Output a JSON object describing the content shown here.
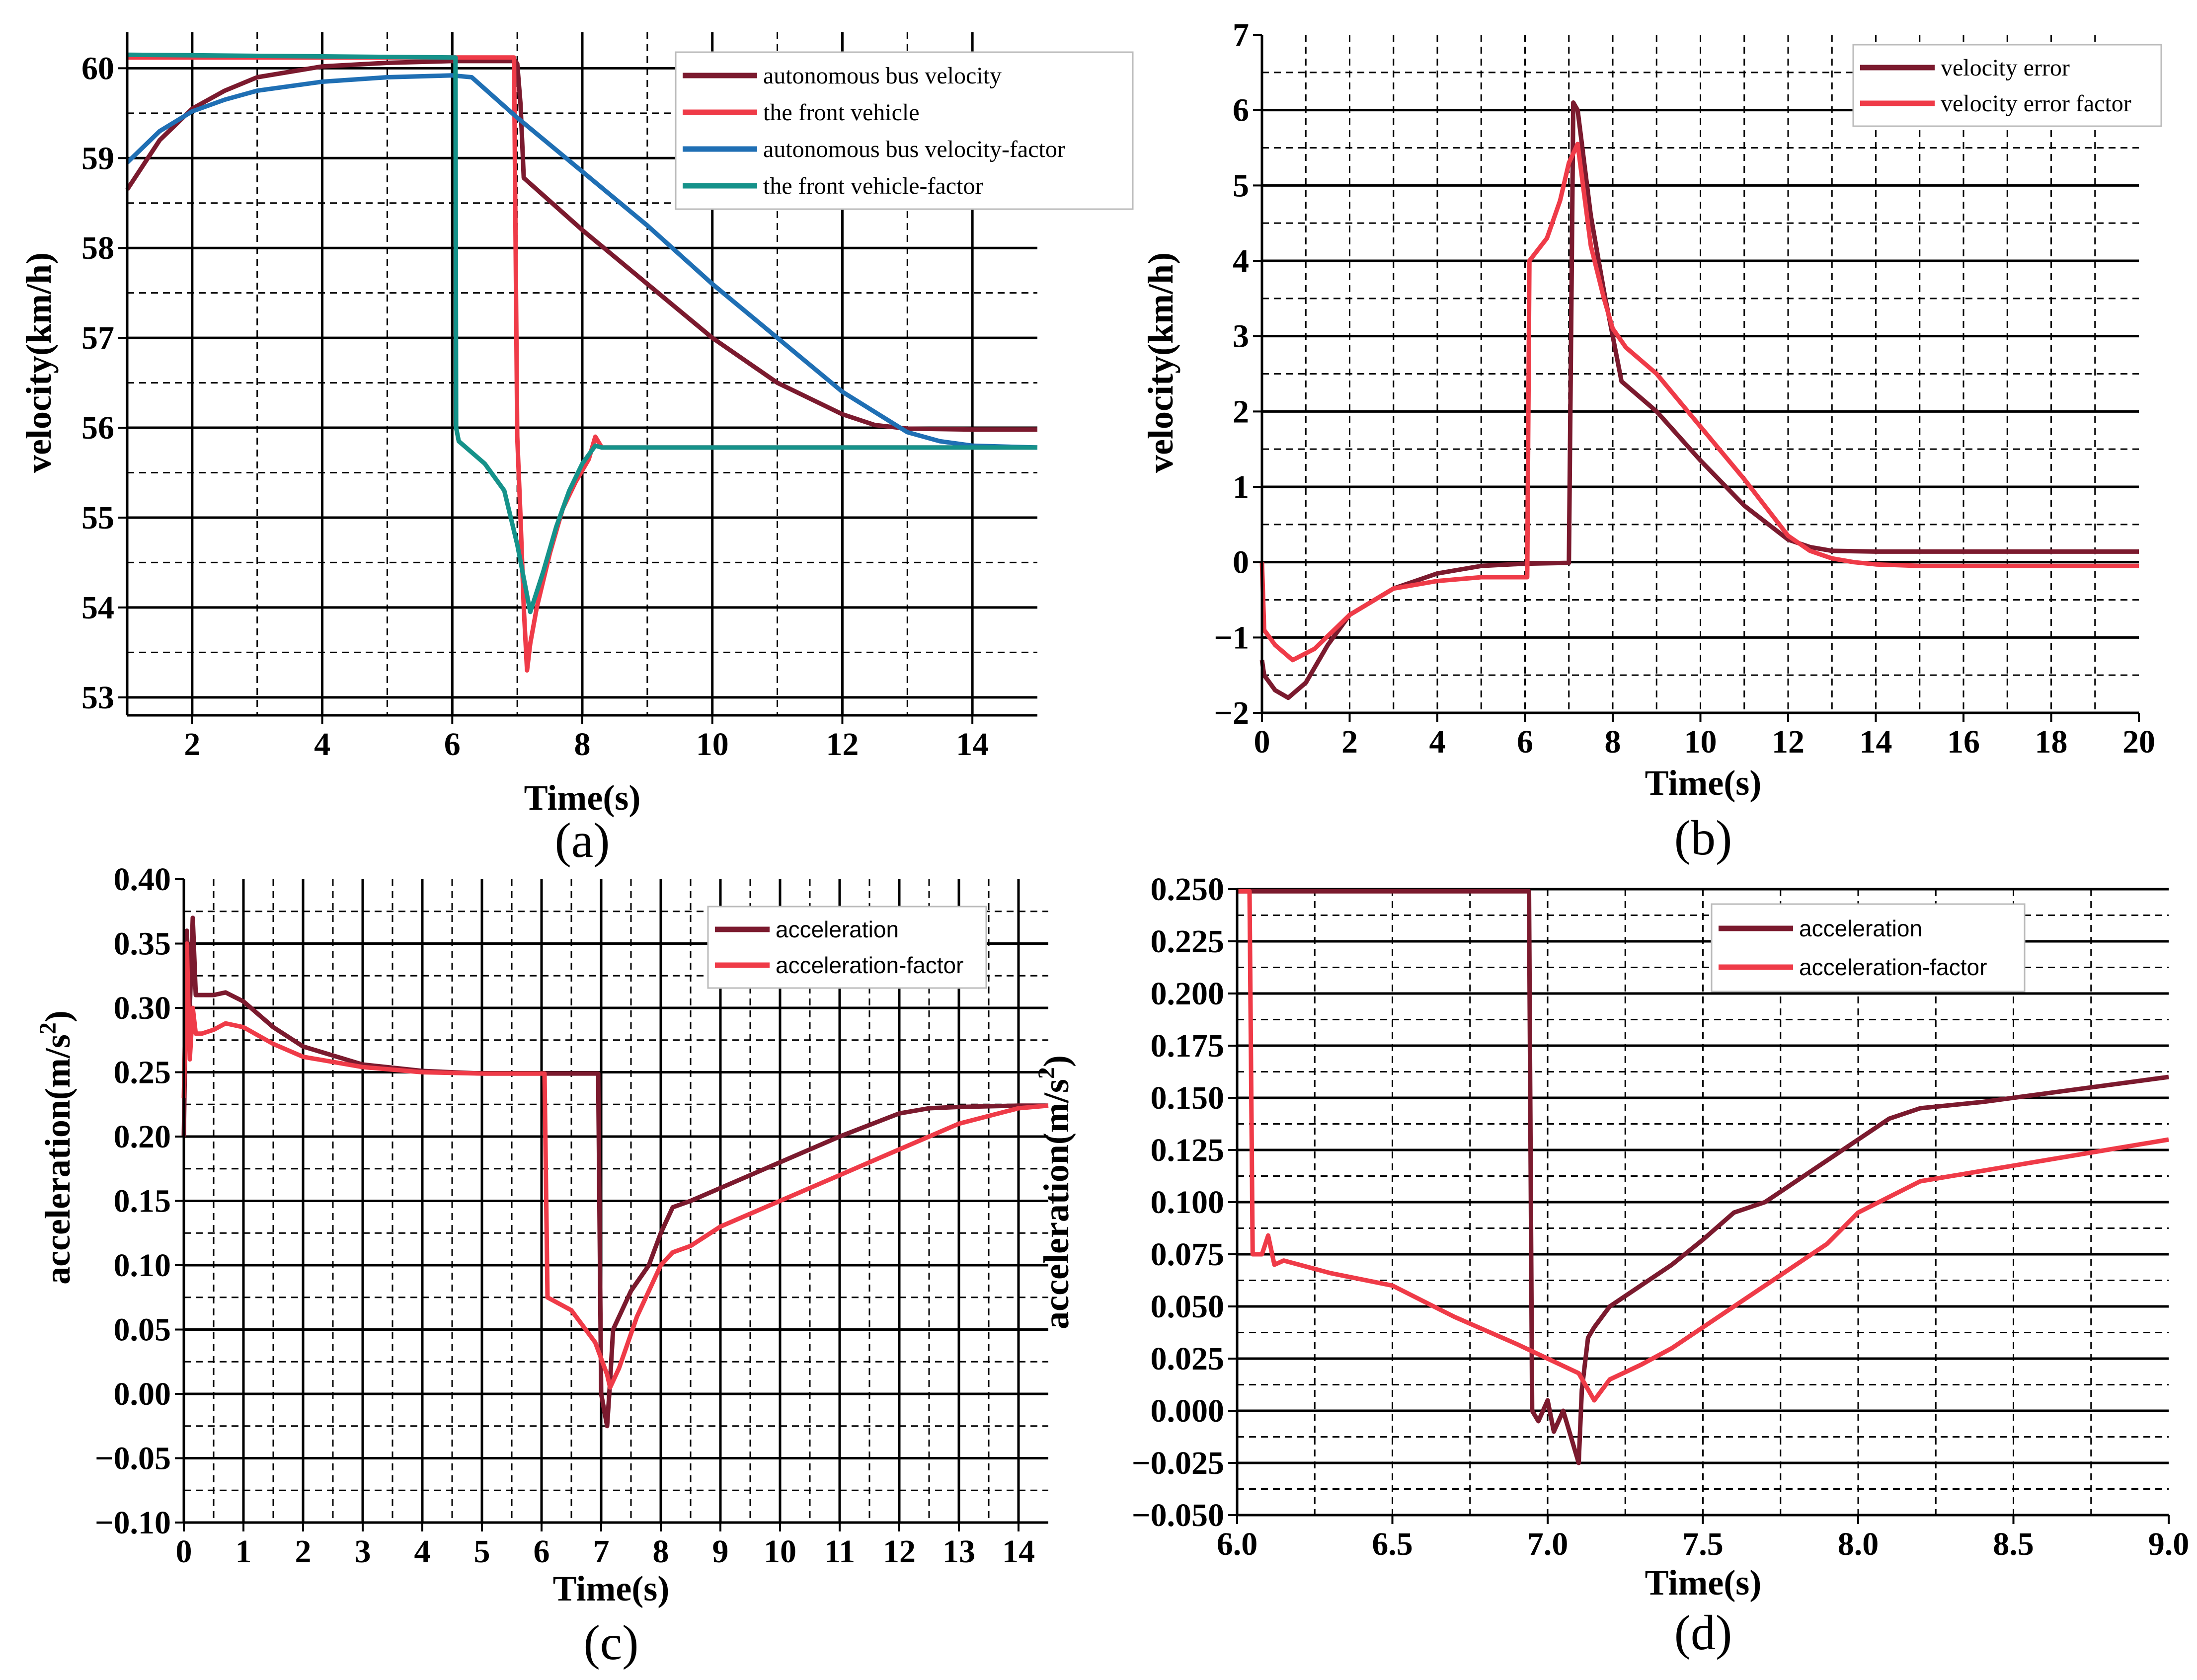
{
  "colors": {
    "dark_red": "#7b1a2e",
    "red": "#ef3b48",
    "blue": "#1f6fb4",
    "teal": "#15928a"
  },
  "chart_data": [
    {
      "id": "a",
      "type": "line",
      "caption": "(a)",
      "xlabel": "Time(s)",
      "ylabel": "velocity(km/h)",
      "xlim": [
        1,
        15
      ],
      "ylim": [
        52.8,
        60.4
      ],
      "xticks": [
        2,
        4,
        6,
        8,
        10,
        12,
        14
      ],
      "yticks": [
        53,
        54,
        55,
        56,
        57,
        58,
        59,
        60
      ],
      "grid_major_y": [
        53,
        54,
        55,
        56,
        57,
        58,
        59,
        60
      ],
      "grid_minor_y": [
        53.5,
        54.5,
        55.5,
        56.5,
        57.5,
        58.5,
        59.5
      ],
      "grid_major_x": [
        2,
        4,
        6,
        8,
        10,
        12,
        14
      ],
      "grid_minor_x": [
        3,
        5,
        7,
        9,
        11,
        13
      ],
      "legend_position": "top-right",
      "legend_font": "serif",
      "series": [
        {
          "name": "autonomous bus velocity",
          "color": "#7b1a2e",
          "x": [
            1,
            1.5,
            2,
            2.5,
            3,
            4,
            5,
            6,
            6.8,
            6.97,
            7.0,
            7.05,
            7.1,
            8,
            9,
            10,
            11,
            12,
            12.5,
            13,
            14,
            15
          ],
          "y": [
            58.65,
            59.2,
            59.55,
            59.75,
            59.9,
            60.02,
            60.06,
            60.08,
            60.08,
            60.08,
            60.05,
            59.6,
            58.78,
            58.2,
            57.6,
            57.0,
            56.5,
            56.15,
            56.03,
            55.99,
            55.98,
            55.98
          ]
        },
        {
          "name": "the front vehicle",
          "color": "#ef3b48",
          "x": [
            1,
            6,
            6.9,
            6.95,
            7.0,
            7.05,
            7.1,
            7.15,
            7.2,
            7.3,
            7.5,
            7.7,
            7.9,
            8.1,
            8.2,
            8.3,
            9,
            10,
            12,
            15
          ],
          "y": [
            60.12,
            60.12,
            60.12,
            60.12,
            55.9,
            55.0,
            54.0,
            53.3,
            53.6,
            54.0,
            54.6,
            55.1,
            55.4,
            55.65,
            55.9,
            55.78,
            55.78,
            55.78,
            55.78,
            55.78
          ]
        },
        {
          "name": "autonomous bus velocity-factor",
          "color": "#1f6fb4",
          "x": [
            1,
            1.5,
            2,
            2.5,
            3,
            4,
            5,
            6,
            6.3,
            7,
            8,
            9,
            10,
            11,
            12,
            13,
            13.5,
            14,
            15
          ],
          "y": [
            58.95,
            59.3,
            59.52,
            59.65,
            59.75,
            59.85,
            59.9,
            59.92,
            59.9,
            59.45,
            58.85,
            58.25,
            57.6,
            57.0,
            56.4,
            55.95,
            55.85,
            55.8,
            55.78
          ]
        },
        {
          "name": "the front vehicle-factor",
          "color": "#15928a",
          "x": [
            1,
            6,
            6.05,
            6.06,
            6.1,
            6.5,
            6.8,
            7.0,
            7.2,
            7.4,
            7.6,
            7.8,
            8.0,
            8.2,
            8.3,
            9,
            10,
            12,
            15
          ],
          "y": [
            60.15,
            60.12,
            60.12,
            56.0,
            55.85,
            55.6,
            55.3,
            54.7,
            53.95,
            54.4,
            54.9,
            55.3,
            55.6,
            55.8,
            55.78,
            55.78,
            55.78,
            55.78,
            55.78
          ]
        }
      ]
    },
    {
      "id": "b",
      "type": "line",
      "caption": "(b)",
      "xlabel": "Time(s)",
      "ylabel": "velocity(km/h)",
      "xlim": [
        0,
        20
      ],
      "ylim": [
        -2,
        7
      ],
      "xticks": [
        0,
        2,
        4,
        6,
        8,
        10,
        12,
        14,
        16,
        18,
        20
      ],
      "yticks": [
        -2,
        -1,
        0,
        1,
        2,
        3,
        4,
        5,
        6,
        7
      ],
      "grid_major_y": [
        -1,
        0,
        1,
        2,
        3,
        4,
        5,
        6
      ],
      "grid_minor_y": [
        -1.5,
        -0.5,
        0.5,
        1.5,
        2.5,
        3.5,
        4.5,
        5.5,
        6.5
      ],
      "grid_major_x": [],
      "grid_minor_x": [
        1,
        2,
        3,
        4,
        5,
        6,
        7,
        8,
        9,
        10,
        11,
        12,
        13,
        14,
        15,
        16,
        17,
        18,
        19
      ],
      "legend_position": "top-right",
      "legend_font": "serif",
      "series": [
        {
          "name": "velocity error",
          "color": "#7b1a2e",
          "x": [
            0,
            0.05,
            0.3,
            0.6,
            1.0,
            1.5,
            2,
            3,
            4,
            5,
            6,
            6.9,
            7.0,
            7.05,
            7.1,
            7.2,
            7.5,
            7.8,
            8.0,
            8.2,
            8.5,
            9,
            10,
            11,
            12,
            12.5,
            13,
            14,
            15,
            16,
            20
          ],
          "y": [
            -1.3,
            -1.5,
            -1.7,
            -1.8,
            -1.6,
            -1.1,
            -0.7,
            -0.35,
            -0.15,
            -0.05,
            -0.02,
            -0.01,
            -0.01,
            3.0,
            6.1,
            6.0,
            4.6,
            3.6,
            3.0,
            2.4,
            2.25,
            2.0,
            1.35,
            0.75,
            0.3,
            0.2,
            0.15,
            0.14,
            0.14,
            0.14,
            0.14
          ]
        },
        {
          "name": "velocity error factor",
          "color": "#ef3b48",
          "x": [
            0,
            0.05,
            0.3,
            0.7,
            1.2,
            2,
            3,
            4,
            5,
            6,
            6.05,
            6.1,
            6.5,
            6.8,
            7.0,
            7.2,
            7.5,
            7.8,
            8.0,
            8.3,
            9,
            10,
            11,
            12,
            12.5,
            13,
            13.5,
            14,
            15,
            16,
            20
          ],
          "y": [
            0,
            -0.9,
            -1.1,
            -1.3,
            -1.15,
            -0.7,
            -0.35,
            -0.25,
            -0.2,
            -0.2,
            -0.2,
            4.0,
            4.3,
            4.8,
            5.3,
            5.55,
            4.2,
            3.5,
            3.1,
            2.85,
            2.5,
            1.8,
            1.1,
            0.35,
            0.15,
            0.05,
            0.0,
            -0.03,
            -0.05,
            -0.05,
            -0.05
          ]
        }
      ]
    },
    {
      "id": "c",
      "type": "line",
      "caption": "(c)",
      "xlabel": "Time(s)",
      "ylabel": "acceleration(m/s2)",
      "ylabel_main": "acceleration(m/s",
      "ylabel_sup": "2",
      "ylabel_end": ")",
      "xlim": [
        0,
        14.5
      ],
      "ylim": [
        -0.1,
        0.4
      ],
      "xticks": [
        0,
        1,
        2,
        3,
        4,
        5,
        6,
        7,
        8,
        9,
        10,
        11,
        12,
        13,
        14
      ],
      "yticks": [
        -0.1,
        -0.05,
        0.0,
        0.05,
        0.1,
        0.15,
        0.2,
        0.25,
        0.3,
        0.35,
        0.4
      ],
      "ytick_labels": [
        "−0.10",
        "−0.05",
        "0.00",
        "0.05",
        "0.10",
        "0.15",
        "0.20",
        "0.25",
        "0.30",
        "0.35",
        "0.40"
      ],
      "grid_major_y": [
        -0.05,
        0.0,
        0.05,
        0.1,
        0.15,
        0.2,
        0.25,
        0.3,
        0.35
      ],
      "grid_minor_y": [
        -0.075,
        -0.025,
        0.025,
        0.075,
        0.125,
        0.175,
        0.225,
        0.275,
        0.325,
        0.375
      ],
      "grid_major_x": [
        1,
        2,
        3,
        4,
        5,
        6,
        7,
        8,
        9,
        10,
        11,
        12,
        13,
        14
      ],
      "grid_minor_x": [
        0.5,
        1.5,
        2.5,
        3.5,
        4.5,
        5.5,
        6.5,
        7.5,
        8.5,
        9.5,
        10.5,
        11.5,
        12.5,
        13.5
      ],
      "legend_position": "top-right",
      "legend_font": "sans",
      "series": [
        {
          "name": "acceleration",
          "color": "#7b1a2e",
          "x": [
            0,
            0.05,
            0.1,
            0.15,
            0.2,
            0.3,
            0.5,
            0.7,
            1.0,
            1.5,
            2,
            3,
            4,
            5,
            6,
            6.9,
            6.95,
            7.0,
            7.1,
            7.15,
            7.2,
            7.5,
            7.8,
            8.0,
            8.2,
            8.5,
            9,
            10,
            11,
            12,
            12.5,
            13,
            14,
            14.5
          ],
          "y": [
            0.2,
            0.36,
            0.3,
            0.37,
            0.31,
            0.31,
            0.31,
            0.312,
            0.305,
            0.285,
            0.27,
            0.256,
            0.251,
            0.249,
            0.249,
            0.249,
            0.249,
            0.0,
            -0.025,
            0.01,
            0.05,
            0.08,
            0.1,
            0.125,
            0.145,
            0.15,
            0.16,
            0.18,
            0.2,
            0.218,
            0.222,
            0.223,
            0.224,
            0.224
          ]
        },
        {
          "name": "acceleration-factor",
          "color": "#ef3b48",
          "x": [
            0,
            0.05,
            0.1,
            0.15,
            0.2,
            0.3,
            0.5,
            0.7,
            1.0,
            1.5,
            2,
            3,
            4,
            5,
            6,
            6.05,
            6.1,
            6.5,
            6.9,
            7.1,
            7.15,
            7.3,
            7.6,
            8.0,
            8.2,
            8.5,
            9,
            10,
            11,
            12,
            13,
            14,
            14.5
          ],
          "y": [
            0.23,
            0.35,
            0.26,
            0.3,
            0.28,
            0.28,
            0.283,
            0.288,
            0.285,
            0.272,
            0.262,
            0.254,
            0.25,
            0.249,
            0.249,
            0.249,
            0.075,
            0.065,
            0.04,
            0.015,
            0.005,
            0.02,
            0.06,
            0.1,
            0.11,
            0.115,
            0.13,
            0.15,
            0.17,
            0.19,
            0.21,
            0.222,
            0.224
          ]
        }
      ]
    },
    {
      "id": "d",
      "type": "line",
      "caption": "(d)",
      "xlabel": "Time(s)",
      "ylabel": "acceleration(m/s2)",
      "ylabel_main": "acceleration(m/s",
      "ylabel_sup": "2",
      "ylabel_end": ")",
      "xlim": [
        6.0,
        9.0
      ],
      "ylim": [
        -0.05,
        0.25
      ],
      "xticks": [
        6.0,
        6.5,
        7.0,
        7.5,
        8.0,
        8.5,
        9.0
      ],
      "xtick_labels": [
        "6.0",
        "6.5",
        "7.0",
        "7.5",
        "8.0",
        "8.5",
        "9.0"
      ],
      "yticks": [
        -0.05,
        -0.025,
        0.0,
        0.025,
        0.05,
        0.075,
        0.1,
        0.125,
        0.15,
        0.175,
        0.2,
        0.225,
        0.25
      ],
      "ytick_labels": [
        "−0.050",
        "−0.025",
        "0.000",
        "0.025",
        "0.050",
        "0.075",
        "0.100",
        "0.125",
        "0.150",
        "0.175",
        "0.200",
        "0.225",
        "0.250"
      ],
      "grid_major_y": [
        -0.025,
        0.0,
        0.025,
        0.05,
        0.075,
        0.1,
        0.125,
        0.15,
        0.175,
        0.2,
        0.225,
        0.25
      ],
      "grid_minor_y": [
        -0.0375,
        -0.0125,
        0.0125,
        0.0375,
        0.0625,
        0.0875,
        0.1125,
        0.1375,
        0.1625,
        0.1875,
        0.2125,
        0.2375
      ],
      "grid_major_x": [],
      "grid_minor_x": [
        6.25,
        6.5,
        6.75,
        7.0,
        7.25,
        7.5,
        7.75,
        8.0,
        8.25,
        8.5,
        8.75
      ],
      "legend_position": "top-right",
      "legend_font": "sans",
      "series": [
        {
          "name": "acceleration",
          "color": "#7b1a2e",
          "x": [
            6.0,
            6.6,
            6.94,
            6.95,
            6.97,
            7.0,
            7.02,
            7.05,
            7.08,
            7.1,
            7.11,
            7.13,
            7.15,
            7.2,
            7.3,
            7.4,
            7.5,
            7.6,
            7.7,
            7.8,
            7.9,
            8.0,
            8.1,
            8.2,
            8.4,
            8.6,
            8.8,
            9.0
          ],
          "y": [
            0.249,
            0.249,
            0.249,
            0.0,
            -0.005,
            0.005,
            -0.01,
            0.0,
            -0.015,
            -0.025,
            0.01,
            0.035,
            0.04,
            0.05,
            0.06,
            0.07,
            0.082,
            0.095,
            0.1,
            0.11,
            0.12,
            0.13,
            0.14,
            0.145,
            0.148,
            0.152,
            0.156,
            0.16
          ]
        },
        {
          "name": "acceleration-factor",
          "color": "#ef3b48",
          "x": [
            6.0,
            6.04,
            6.05,
            6.08,
            6.1,
            6.12,
            6.15,
            6.2,
            6.3,
            6.5,
            6.7,
            6.9,
            7.0,
            7.1,
            7.15,
            7.2,
            7.3,
            7.4,
            7.5,
            7.6,
            7.7,
            7.8,
            7.9,
            8.0,
            8.2,
            8.4,
            8.6,
            8.8,
            9.0
          ],
          "y": [
            0.249,
            0.249,
            0.075,
            0.075,
            0.084,
            0.07,
            0.072,
            0.07,
            0.066,
            0.06,
            0.045,
            0.032,
            0.025,
            0.018,
            0.005,
            0.015,
            0.022,
            0.03,
            0.04,
            0.05,
            0.06,
            0.07,
            0.08,
            0.095,
            0.11,
            0.115,
            0.12,
            0.125,
            0.13
          ]
        }
      ]
    }
  ]
}
